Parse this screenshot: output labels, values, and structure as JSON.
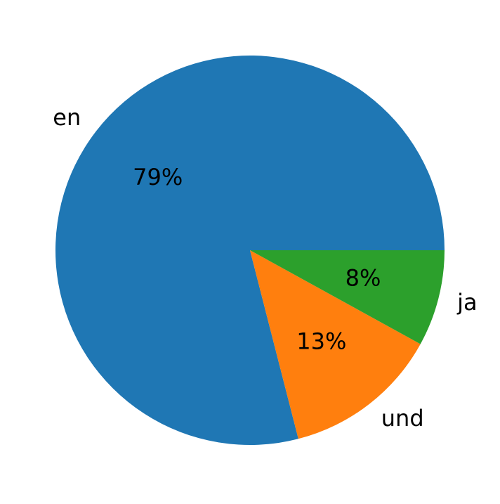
{
  "chart_data": {
    "type": "pie",
    "categories": [
      "en",
      "und",
      "ja"
    ],
    "values": [
      79,
      13,
      8
    ],
    "value_labels": [
      "79%",
      "13%",
      "8%"
    ],
    "colors": [
      "#1f77b4",
      "#ff7f0e",
      "#2ca02c"
    ]
  }
}
